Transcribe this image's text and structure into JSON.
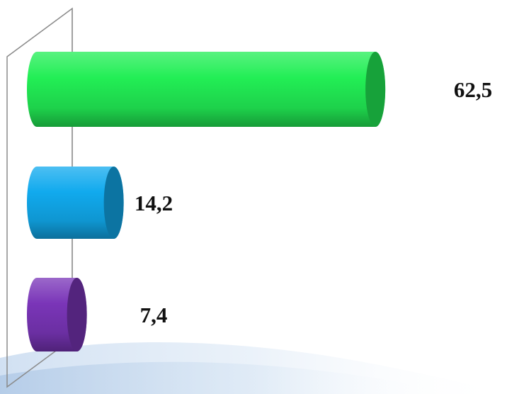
{
  "chart_data": {
    "type": "bar",
    "orientation": "horizontal",
    "style": "3d-cylinder",
    "title": "",
    "xlabel": "",
    "ylabel": "",
    "categories": [
      "",
      "",
      ""
    ],
    "values": [
      62.5,
      14.2,
      7.4
    ],
    "value_labels": [
      "62,5",
      "14,2",
      "7,4"
    ],
    "colors": [
      "#22ee55",
      "#11aaee",
      "#7a35b8"
    ],
    "xlim": [
      0,
      80
    ],
    "grid": false,
    "legend": "none"
  }
}
